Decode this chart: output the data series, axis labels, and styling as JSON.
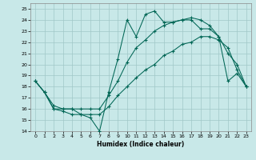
{
  "xlabel": "Humidex (Indice chaleur)",
  "bg_color": "#c8e8e8",
  "grid_color": "#a0c8c8",
  "line_color": "#006655",
  "xlim": [
    -0.5,
    23.5
  ],
  "ylim": [
    14,
    25.5
  ],
  "yticks": [
    14,
    15,
    16,
    17,
    18,
    19,
    20,
    21,
    22,
    23,
    24,
    25
  ],
  "xticks": [
    0,
    1,
    2,
    3,
    4,
    5,
    6,
    7,
    8,
    9,
    10,
    11,
    12,
    13,
    14,
    15,
    16,
    17,
    18,
    19,
    20,
    21,
    22,
    23
  ],
  "line1_y": [
    18.5,
    17.5,
    16.0,
    16.0,
    16.0,
    15.5,
    15.2,
    14.0,
    17.5,
    20.5,
    24.0,
    22.5,
    24.5,
    24.8,
    23.8,
    23.8,
    24.0,
    24.0,
    23.2,
    23.2,
    22.5,
    18.5,
    19.2,
    18.0
  ],
  "line2_y": [
    18.5,
    17.5,
    16.3,
    16.0,
    16.0,
    16.0,
    16.0,
    16.0,
    17.2,
    18.5,
    20.2,
    21.5,
    22.2,
    23.0,
    23.5,
    23.8,
    24.0,
    24.2,
    24.0,
    23.5,
    22.5,
    21.0,
    20.0,
    18.0
  ],
  "line3_y": [
    18.5,
    17.5,
    16.0,
    15.8,
    15.5,
    15.5,
    15.5,
    15.5,
    16.2,
    17.2,
    18.0,
    18.8,
    19.5,
    20.0,
    20.8,
    21.2,
    21.8,
    22.0,
    22.5,
    22.5,
    22.2,
    21.5,
    19.5,
    18.0
  ]
}
